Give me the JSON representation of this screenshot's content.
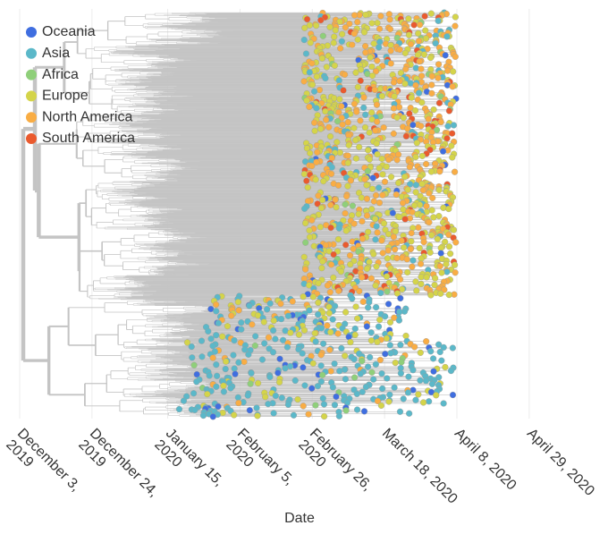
{
  "chart_data": {
    "type": "tree",
    "x_label": "Date",
    "xlim": [
      "2019-12-03",
      "2020-05-18"
    ],
    "xticks": [
      {
        "value": "2019-12-03",
        "label": "December 3, 2019"
      },
      {
        "value": "2019-12-24",
        "label": "December 24, 2019"
      },
      {
        "value": "2020-01-15",
        "label": "January 15, 2020"
      },
      {
        "value": "2020-02-05",
        "label": "February 5, 2020"
      },
      {
        "value": "2020-02-26",
        "label": "February 26, 2020"
      },
      {
        "value": "2020-03-18",
        "label": "March 18, 2020"
      },
      {
        "value": "2020-04-08",
        "label": "April 8, 2020"
      },
      {
        "value": "2020-04-29",
        "label": "April 29, 2020"
      }
    ],
    "grid": true,
    "legend": "upper left",
    "series": [
      {
        "name": "Oceania",
        "color": "#3f6ee0"
      },
      {
        "name": "Asia",
        "color": "#5bb8c9"
      },
      {
        "name": "Africa",
        "color": "#8fcf7a"
      },
      {
        "name": "Europe",
        "color": "#d4d44a"
      },
      {
        "name": "North America",
        "color": "#f9ad44"
      },
      {
        "name": "South America",
        "color": "#ea5a2e"
      }
    ]
  }
}
